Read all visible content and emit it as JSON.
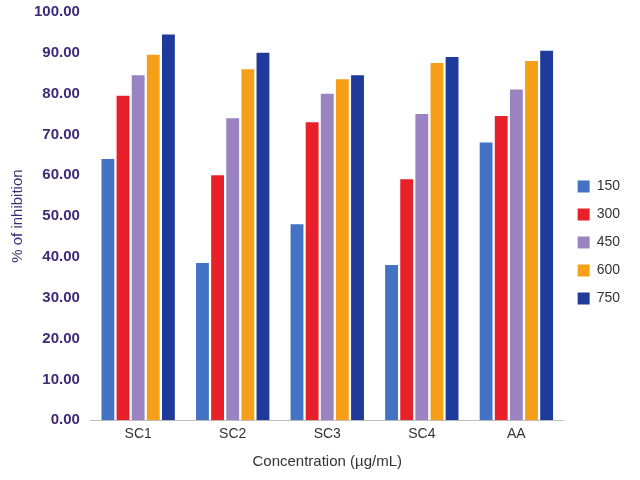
{
  "chart_data": {
    "type": "bar",
    "x_label": "Concentration (µg/mL)",
    "y_label": "% of inhibition",
    "categories": [
      "SC1",
      "SC2",
      "SC3",
      "SC4",
      "AA"
    ],
    "series": [
      {
        "name": "150",
        "color": "#4472c4",
        "values": [
          64,
          38.5,
          48,
          38,
          68
        ]
      },
      {
        "name": "300",
        "color": "#e8202a",
        "values": [
          79.5,
          60,
          73,
          59,
          74.5
        ]
      },
      {
        "name": "450",
        "color": "#9983c0",
        "values": [
          84.5,
          74,
          80,
          75,
          81
        ]
      },
      {
        "name": "600",
        "color": "#f6a01a",
        "values": [
          89.5,
          86,
          83.5,
          87.5,
          88
        ]
      },
      {
        "name": "750",
        "color": "#1f3a9a",
        "values": [
          94.5,
          90,
          84.5,
          89,
          90.5
        ]
      }
    ],
    "ylim": [
      0,
      100
    ],
    "yticks": [
      {
        "value": 0,
        "label": "0.00"
      },
      {
        "value": 10,
        "label": "10.00"
      },
      {
        "value": 20,
        "label": "20.00"
      },
      {
        "value": 30,
        "label": "30.00"
      },
      {
        "value": 40,
        "label": "40.00"
      },
      {
        "value": 50,
        "label": "50.00"
      },
      {
        "value": 60,
        "label": "60.00"
      },
      {
        "value": 70,
        "label": "70.00"
      },
      {
        "value": 80,
        "label": "80.00"
      },
      {
        "value": 90,
        "label": "90.00"
      },
      {
        "value": 100,
        "label": "100.00"
      }
    ],
    "grid": false,
    "legend": "right"
  }
}
